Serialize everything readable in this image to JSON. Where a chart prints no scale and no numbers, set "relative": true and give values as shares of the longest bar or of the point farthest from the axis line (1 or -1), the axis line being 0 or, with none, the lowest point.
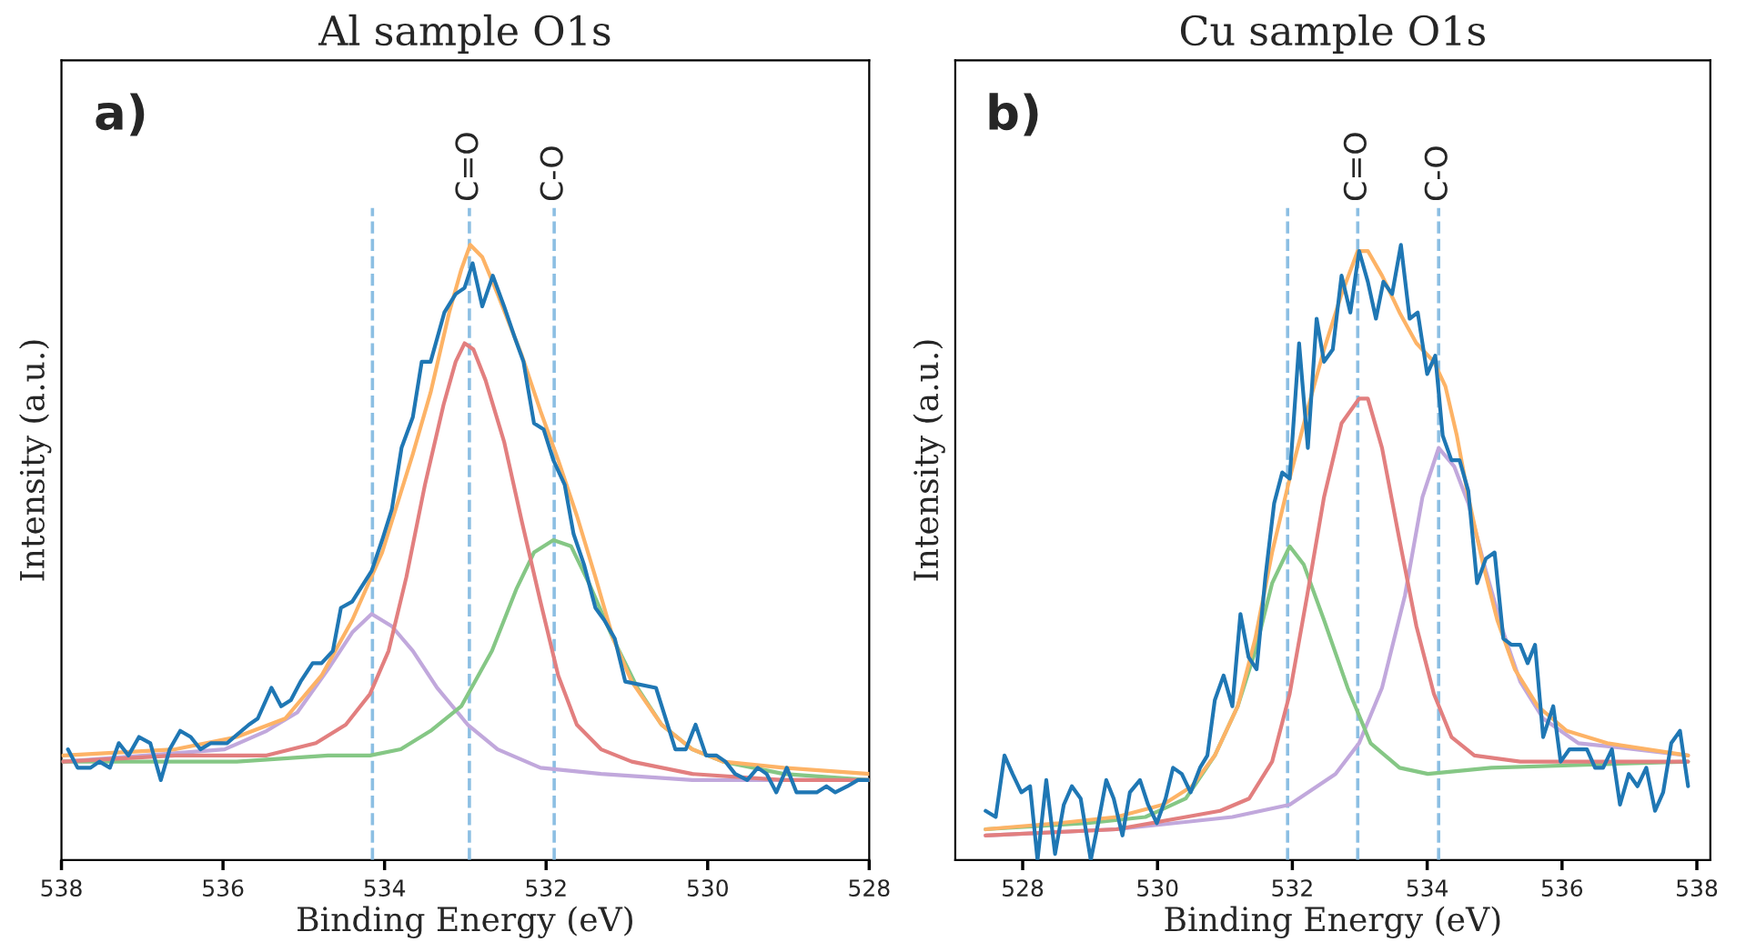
{
  "chart_data": [
    {
      "type": "line",
      "title": "Al sample O1s",
      "xlabel": "Binding Energy (eV)",
      "ylabel": "Intensity (a.u.)",
      "relative": true,
      "tick_labels": "x",
      "grid": false,
      "xlim": [
        538,
        528
      ],
      "xticks": [
        538,
        536,
        534,
        532,
        530,
        528
      ],
      "annotations": [
        "a)"
      ],
      "ref_lines": [
        {
          "axis": "x",
          "value": 534.15,
          "color": "#8cbfe3",
          "line_style": "dashed"
        },
        {
          "axis": "x",
          "value": 532.95,
          "label": "C=O",
          "color": "#8cbfe3",
          "line_style": "dashed"
        },
        {
          "axis": "x",
          "value": 531.9,
          "label": "C-O",
          "color": "#8cbfe3",
          "line_style": "dashed"
        }
      ],
      "series": [
        {
          "color": "#1f77b4",
          "x": [
            537.92,
            537.8,
            537.64,
            537.53,
            537.4,
            537.29,
            537.17,
            537.04,
            536.9,
            536.77,
            536.66,
            536.53,
            536.4,
            536.28,
            536.15,
            535.95,
            535.68,
            535.57,
            535.4,
            535.28,
            535.16,
            535.04,
            534.89,
            534.78,
            534.64,
            534.54,
            534.4,
            534.16,
            534.03,
            533.91,
            533.79,
            533.65,
            533.54,
            533.43,
            533.26,
            533.12,
            533.01,
            532.91,
            532.79,
            532.66,
            532.52,
            532.39,
            532.28,
            532.15,
            532.03,
            531.91,
            531.77,
            531.66,
            531.53,
            531.39,
            531.28,
            531.15,
            531.02,
            530.64,
            530.4,
            530.27,
            530.15,
            530.02,
            529.89,
            529.78,
            529.66,
            529.51,
            529.38,
            529.27,
            529.15,
            529.02,
            528.9,
            528.76,
            528.65,
            528.53,
            528.42,
            528.27,
            528.14,
            528.0
          ],
          "values": [
            0.18,
            0.15,
            0.15,
            0.16,
            0.15,
            0.19,
            0.17,
            0.2,
            0.19,
            0.13,
            0.18,
            0.21,
            0.2,
            0.18,
            0.19,
            0.19,
            0.22,
            0.23,
            0.28,
            0.25,
            0.26,
            0.29,
            0.32,
            0.32,
            0.34,
            0.41,
            0.42,
            0.47,
            0.52,
            0.57,
            0.67,
            0.72,
            0.81,
            0.81,
            0.89,
            0.92,
            0.93,
            0.97,
            0.9,
            0.95,
            0.9,
            0.85,
            0.81,
            0.71,
            0.7,
            0.65,
            0.61,
            0.53,
            0.48,
            0.41,
            0.39,
            0.36,
            0.29,
            0.28,
            0.18,
            0.18,
            0.22,
            0.17,
            0.17,
            0.16,
            0.14,
            0.13,
            0.15,
            0.14,
            0.11,
            0.15,
            0.11,
            0.11,
            0.11,
            0.12,
            0.11,
            0.12,
            0.13,
            0.13
          ]
        },
        {
          "color": "#fdb366",
          "x": [
            537.98,
            536.59,
            535.83,
            535.23,
            534.78,
            534.4,
            534.03,
            533.65,
            533.43,
            533.2,
            533.05,
            532.94,
            532.79,
            532.6,
            532.3,
            532.07,
            531.85,
            531.62,
            531.39,
            531.17,
            530.94,
            530.57,
            530.19,
            529.81,
            529.06,
            528.0
          ],
          "values": [
            0.17,
            0.18,
            0.2,
            0.23,
            0.3,
            0.39,
            0.5,
            0.66,
            0.76,
            0.89,
            0.96,
            1.0,
            0.98,
            0.92,
            0.82,
            0.73,
            0.65,
            0.56,
            0.46,
            0.36,
            0.29,
            0.22,
            0.18,
            0.16,
            0.15,
            0.14
          ]
        },
        {
          "color": "#e27f7f",
          "x": [
            537.98,
            536.59,
            535.46,
            534.85,
            534.48,
            534.18,
            533.95,
            533.73,
            533.5,
            533.27,
            533.12,
            533.01,
            532.9,
            532.75,
            532.52,
            532.3,
            532.07,
            531.85,
            531.62,
            531.32,
            530.94,
            530.19,
            529.06,
            528.0
          ],
          "values": [
            0.16,
            0.17,
            0.17,
            0.19,
            0.22,
            0.27,
            0.34,
            0.46,
            0.61,
            0.74,
            0.81,
            0.84,
            0.83,
            0.78,
            0.68,
            0.55,
            0.42,
            0.3,
            0.22,
            0.18,
            0.16,
            0.14,
            0.13,
            0.13
          ]
        },
        {
          "color": "#85c785",
          "x": [
            537.98,
            535.83,
            534.7,
            534.18,
            533.8,
            533.43,
            533.05,
            532.67,
            532.37,
            532.15,
            531.91,
            531.69,
            531.47,
            531.17,
            530.87,
            530.57,
            530.19,
            529.81,
            529.06,
            528.0
          ],
          "values": [
            0.16,
            0.16,
            0.17,
            0.17,
            0.18,
            0.21,
            0.25,
            0.34,
            0.44,
            0.5,
            0.52,
            0.51,
            0.45,
            0.36,
            0.28,
            0.22,
            0.18,
            0.16,
            0.14,
            0.13
          ]
        },
        {
          "color": "#c1a8dc",
          "x": [
            537.98,
            536.96,
            535.98,
            535.46,
            535.08,
            534.7,
            534.4,
            534.16,
            533.91,
            533.65,
            533.35,
            532.97,
            532.6,
            532.07,
            531.32,
            530.19,
            528.0
          ],
          "values": [
            0.16,
            0.17,
            0.18,
            0.21,
            0.24,
            0.31,
            0.37,
            0.4,
            0.38,
            0.34,
            0.28,
            0.22,
            0.18,
            0.15,
            0.14,
            0.13,
            0.13
          ]
        }
      ]
    },
    {
      "type": "line",
      "title": "Cu sample O1s",
      "xlabel": "Binding Energy (eV)",
      "ylabel": "Intensity (a.u.)",
      "relative": true,
      "tick_labels": "x",
      "grid": false,
      "xlim": [
        527.0,
        538.2
      ],
      "xticks": [
        528,
        530,
        532,
        534,
        536,
        538
      ],
      "annotations": [
        "b)"
      ],
      "ref_lines": [
        {
          "axis": "x",
          "value": 531.93,
          "color": "#8cbfe3",
          "line_style": "dashed"
        },
        {
          "axis": "x",
          "value": 532.97,
          "label": "C=O",
          "color": "#8cbfe3",
          "line_style": "dashed"
        },
        {
          "axis": "x",
          "value": 534.17,
          "label": "C-O",
          "color": "#8cbfe3",
          "line_style": "dashed"
        }
      ],
      "series": [
        {
          "color": "#1f77b4",
          "x": [
            527.45,
            527.6,
            527.73,
            527.85,
            527.98,
            528.11,
            528.22,
            528.35,
            528.48,
            528.61,
            528.73,
            528.86,
            529.01,
            529.12,
            529.24,
            529.35,
            529.48,
            529.59,
            529.74,
            529.86,
            529.99,
            530.12,
            530.23,
            530.36,
            530.49,
            530.63,
            530.74,
            530.85,
            530.98,
            531.11,
            531.23,
            531.35,
            531.47,
            531.6,
            531.73,
            531.85,
            531.96,
            532.1,
            532.23,
            532.36,
            532.47,
            532.6,
            532.73,
            532.86,
            532.99,
            533.12,
            533.24,
            533.35,
            533.48,
            533.61,
            533.74,
            533.86,
            534.0,
            534.12,
            534.23,
            534.36,
            534.48,
            534.61,
            534.74,
            534.87,
            535.0,
            535.13,
            535.25,
            535.38,
            535.49,
            535.6,
            535.72,
            535.87,
            535.98,
            536.11,
            536.24,
            536.37,
            536.49,
            536.61,
            536.74,
            536.86,
            536.99,
            537.12,
            537.25,
            537.38,
            537.5,
            537.62,
            537.75,
            537.87
          ],
          "values": [
            0.08,
            0.07,
            0.17,
            0.14,
            0.11,
            0.12,
            0.0,
            0.13,
            0.01,
            0.09,
            0.12,
            0.1,
            0.0,
            0.06,
            0.13,
            0.1,
            0.04,
            0.11,
            0.13,
            0.09,
            0.06,
            0.1,
            0.15,
            0.14,
            0.11,
            0.15,
            0.17,
            0.26,
            0.3,
            0.25,
            0.4,
            0.33,
            0.31,
            0.46,
            0.58,
            0.63,
            0.62,
            0.84,
            0.67,
            0.88,
            0.81,
            0.83,
            0.95,
            0.89,
            0.99,
            0.94,
            0.88,
            0.94,
            0.92,
            1.0,
            0.88,
            0.89,
            0.79,
            0.82,
            0.69,
            0.65,
            0.65,
            0.6,
            0.45,
            0.49,
            0.5,
            0.36,
            0.35,
            0.35,
            0.32,
            0.35,
            0.2,
            0.25,
            0.16,
            0.18,
            0.18,
            0.18,
            0.15,
            0.15,
            0.18,
            0.09,
            0.14,
            0.12,
            0.15,
            0.08,
            0.11,
            0.19,
            0.21,
            0.12
          ]
        },
        {
          "color": "#fdb366",
          "x": [
            527.45,
            528.54,
            529.39,
            530.08,
            530.51,
            530.85,
            531.19,
            531.45,
            531.7,
            531.96,
            532.22,
            532.47,
            532.73,
            532.97,
            533.12,
            533.33,
            533.59,
            533.84,
            534.1,
            534.27,
            534.44,
            534.61,
            534.83,
            535.04,
            535.3,
            535.64,
            536.07,
            536.67,
            537.87
          ],
          "values": [
            0.05,
            0.06,
            0.07,
            0.09,
            0.12,
            0.17,
            0.25,
            0.36,
            0.5,
            0.62,
            0.73,
            0.83,
            0.92,
            0.99,
            0.99,
            0.95,
            0.89,
            0.84,
            0.81,
            0.77,
            0.69,
            0.59,
            0.48,
            0.39,
            0.31,
            0.25,
            0.21,
            0.19,
            0.17
          ]
        },
        {
          "color": "#e27f7f",
          "x": [
            527.45,
            529.39,
            530.42,
            530.93,
            531.36,
            531.7,
            531.96,
            532.22,
            532.47,
            532.73,
            532.99,
            533.12,
            533.33,
            533.59,
            533.84,
            534.1,
            534.36,
            534.7,
            535.38,
            537.87
          ],
          "values": [
            0.04,
            0.05,
            0.07,
            0.08,
            0.1,
            0.16,
            0.27,
            0.43,
            0.59,
            0.71,
            0.75,
            0.75,
            0.67,
            0.52,
            0.38,
            0.27,
            0.2,
            0.17,
            0.16,
            0.16
          ]
        },
        {
          "color": "#85c785",
          "x": [
            527.45,
            528.97,
            529.82,
            530.42,
            530.85,
            531.19,
            531.45,
            531.7,
            531.96,
            532.17,
            532.47,
            532.82,
            533.16,
            533.59,
            534.01,
            534.95,
            537.87
          ],
          "values": [
            0.05,
            0.06,
            0.07,
            0.1,
            0.17,
            0.25,
            0.34,
            0.45,
            0.51,
            0.48,
            0.39,
            0.28,
            0.19,
            0.15,
            0.14,
            0.15,
            0.16
          ]
        },
        {
          "color": "#c1a8dc",
          "x": [
            527.45,
            529.39,
            531.11,
            531.96,
            532.64,
            532.99,
            533.33,
            533.67,
            533.93,
            534.17,
            534.4,
            534.61,
            534.87,
            535.13,
            535.38,
            535.72,
            536.24,
            537.09,
            537.87
          ],
          "values": [
            0.04,
            0.05,
            0.07,
            0.09,
            0.14,
            0.19,
            0.28,
            0.43,
            0.59,
            0.67,
            0.64,
            0.58,
            0.47,
            0.37,
            0.29,
            0.23,
            0.19,
            0.18,
            0.17
          ]
        }
      ]
    }
  ]
}
